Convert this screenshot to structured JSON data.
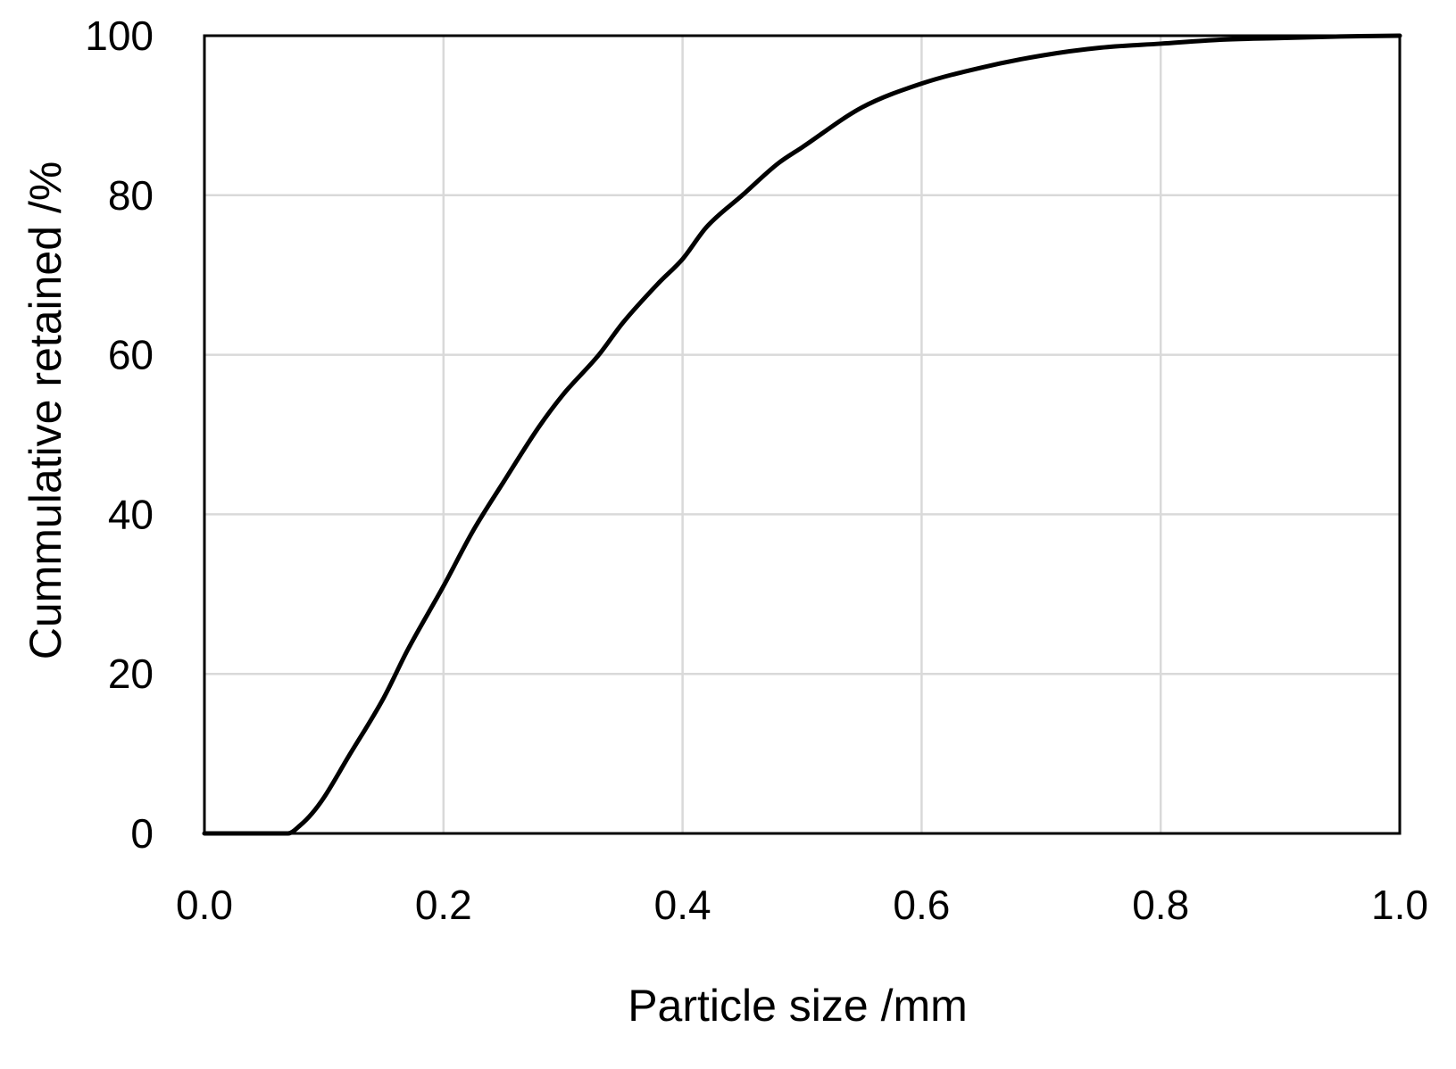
{
  "chart_data": {
    "type": "line",
    "title": "",
    "xlabel": "Particle size /mm",
    "ylabel": "Cummulative retained /%",
    "xlim": [
      0.0,
      1.0
    ],
    "ylim": [
      0,
      100
    ],
    "x_ticks": [
      "0.0",
      "0.2",
      "0.4",
      "0.6",
      "0.8",
      "1.0"
    ],
    "y_ticks": [
      "0",
      "20",
      "40",
      "60",
      "80",
      "100"
    ],
    "grid": true,
    "legend": "none",
    "series": [
      {
        "color": "#000000",
        "x": [
          0.0,
          0.07,
          0.08,
          0.09,
          0.1,
          0.12,
          0.15,
          0.17,
          0.2,
          0.225,
          0.25,
          0.28,
          0.3,
          0.33,
          0.35,
          0.38,
          0.4,
          0.42,
          0.45,
          0.48,
          0.5,
          0.55,
          0.6,
          0.65,
          0.7,
          0.75,
          0.8,
          0.85,
          0.9,
          0.95,
          1.0
        ],
        "y": [
          0,
          0,
          1,
          2.5,
          4.5,
          9.5,
          17,
          23,
          31,
          38,
          44,
          51,
          55,
          60,
          64,
          69,
          72,
          76,
          80,
          84,
          86,
          91,
          94,
          96,
          97.5,
          98.5,
          99,
          99.5,
          99.7,
          99.9,
          100
        ]
      }
    ]
  }
}
